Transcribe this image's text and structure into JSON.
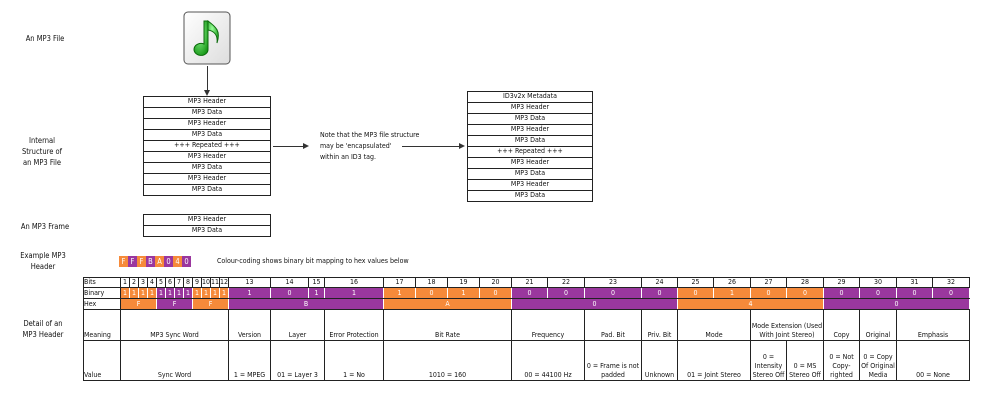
{
  "colors": {
    "orange": "#F68A3A",
    "purple": "#9A379E"
  },
  "labels": {
    "file": "An MP3 File",
    "internal": "Internal Structure of an MP3 File",
    "frame": "An MP3 Frame",
    "example": "Example MP3 Header",
    "detail": "Detail of an MP3 Header"
  },
  "icon": "music-note-file-icon",
  "internal_stack": [
    "MP3 Header",
    "MP3 Data",
    "MP3 Header",
    "MP3 Data",
    "+++ Repeated +++",
    "MP3 Header",
    "MP3 Data",
    "MP3 Header",
    "MP3 Data"
  ],
  "id3_stack": [
    "ID3v2x Metadata",
    "MP3 Header",
    "MP3 Data",
    "MP3 Header",
    "MP3 Data",
    "+++ Repeated +++",
    "MP3 Header",
    "MP3 Data",
    "MP3 Header",
    "MP3 Data"
  ],
  "frame_stack": [
    "MP3 Header",
    "MP3 Data"
  ],
  "note": [
    "Note that the MP3 file structure",
    "may be 'encapsulated'",
    "within an ID3 tag."
  ],
  "example_hex": [
    "F",
    "F",
    "F",
    "B",
    "A",
    "0",
    "4",
    "0"
  ],
  "colour_note": "Colour-coding shows binary bit mapping to hex values below",
  "table": {
    "row_labels": {
      "bits": "Bits",
      "binary": "Binary",
      "hex": "Hex",
      "meaning": "Meaning",
      "value": "Value"
    },
    "binary": [
      "1",
      "1",
      "1",
      "1",
      "1",
      "1",
      "1",
      "1",
      "1",
      "1",
      "1",
      "1",
      "1",
      "0",
      "1",
      "1",
      "1",
      "0",
      "1",
      "0",
      "0",
      "0",
      "0",
      "0",
      "0",
      "1",
      "0",
      "0",
      "0",
      "0",
      "0",
      "0"
    ],
    "fields": [
      {
        "meaning": "MP3 Sync Word",
        "bits": 12,
        "values": [
          "Sync Word"
        ]
      },
      {
        "meaning": "Version",
        "bits": 1,
        "values": [
          "1 = MPEG"
        ]
      },
      {
        "meaning": "Layer",
        "bits": 2,
        "values": [
          "01 = Layer 3"
        ]
      },
      {
        "meaning": "Error Protection",
        "bits": 1,
        "values": [
          "1 = No"
        ]
      },
      {
        "meaning": "Bit Rate",
        "bits": 4,
        "values": [
          "1010 = 160"
        ]
      },
      {
        "meaning": "Frequency",
        "bits": 2,
        "values": [
          "00 = 44100 Hz"
        ]
      },
      {
        "meaning": "Pad. Bit",
        "bits": 1,
        "values": [
          "0 = Frame is not padded"
        ]
      },
      {
        "meaning": "Priv. Bit",
        "bits": 1,
        "values": [
          "Unknown"
        ]
      },
      {
        "meaning": "Mode",
        "bits": 2,
        "values": [
          "01 = Joint Stereo"
        ]
      },
      {
        "meaning": "Mode Extension (Used With Joint Stereo)",
        "bits": 2,
        "values": [
          "0 = Intensity Stereo Off",
          "0 = MS Stereo Off"
        ]
      },
      {
        "meaning": "Copy",
        "bits": 1,
        "values": [
          "0 = Not Copy-righted"
        ]
      },
      {
        "meaning": "Original",
        "bits": 1,
        "values": [
          "0 = Copy Of Original Media"
        ]
      },
      {
        "meaning": "Emphasis",
        "bits": 2,
        "values": [
          "00 = None"
        ]
      }
    ]
  }
}
